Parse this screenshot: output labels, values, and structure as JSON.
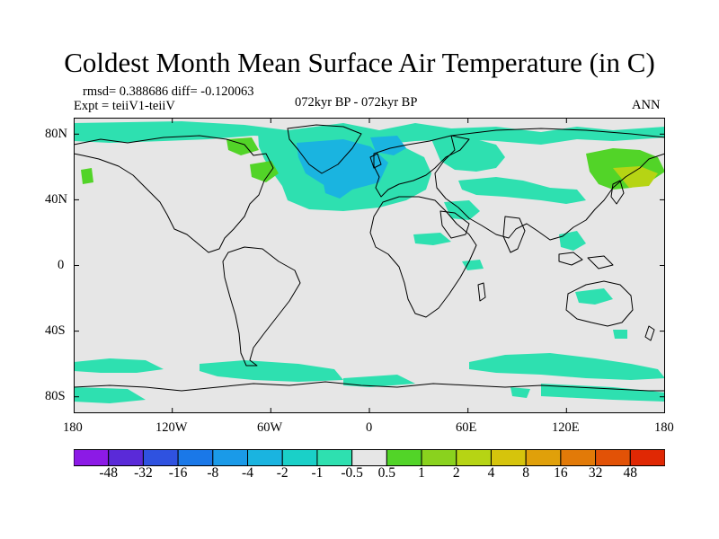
{
  "title": "Coldest Month Mean Surface Air Temperature (in C)",
  "stats": "rmsd= 0.388686 diff= -0.120063",
  "expt": "Expt = teiiV1-teiiV",
  "period": "072kyr BP - 072kyr BP",
  "season": "ANN",
  "y_ticks": [
    "80N",
    "40N",
    "0",
    "40S",
    "80S"
  ],
  "x_ticks": [
    "180",
    "120W",
    "60W",
    "0",
    "60E",
    "120E",
    "180"
  ],
  "colorbar": {
    "colors": [
      "#8c1ae6",
      "#5a2ad8",
      "#2f52e0",
      "#1a78e8",
      "#1a9ae8",
      "#1ab4e0",
      "#1ad0c8",
      "#2ee0b0",
      "#e6e6e6",
      "#52d428",
      "#8ad21e",
      "#b6d414",
      "#d6c40c",
      "#e0a00a",
      "#e27a08",
      "#e25206",
      "#e02804"
    ],
    "labels": [
      "-48",
      "-32",
      "-16",
      "-8",
      "-4",
      "-2",
      "-1",
      "-0.5",
      "0.5",
      "1",
      "2",
      "4",
      "8",
      "16",
      "32",
      "48"
    ]
  },
  "map": {
    "background": "#e6e6e6",
    "coast_color": "#000000"
  }
}
